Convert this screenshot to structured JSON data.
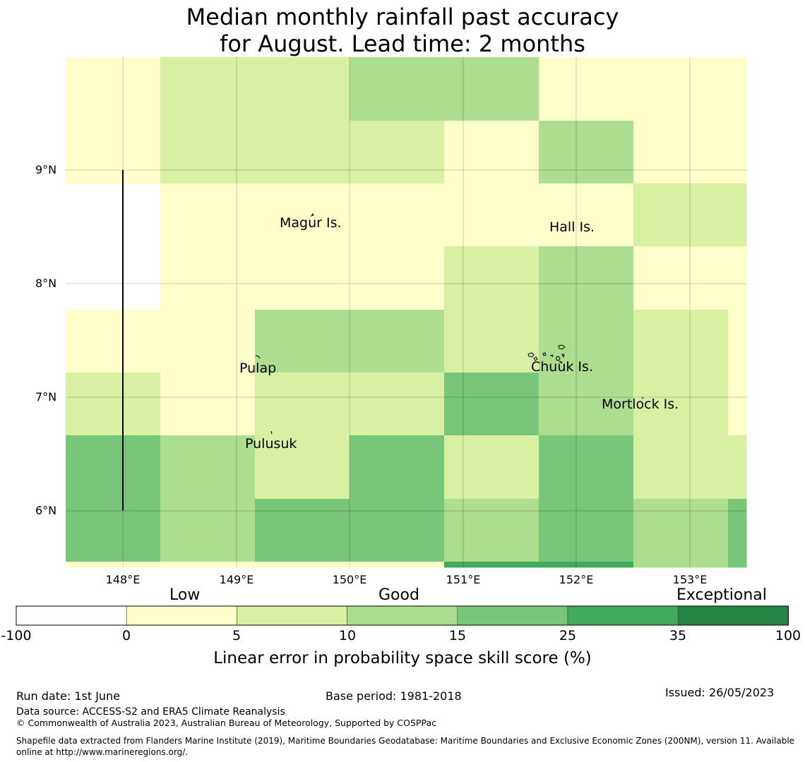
{
  "title": {
    "line1": "Median monthly rainfall past accuracy",
    "line2": "for August. Lead time: 2 months"
  },
  "map": {
    "lat_labels": [
      "9°N",
      "8°N",
      "7°N",
      "6°N"
    ],
    "lon_labels": [
      "148°E",
      "149°E",
      "150°E",
      "151°E",
      "152°E",
      "153°E"
    ],
    "places": {
      "magur": "Magur Is.",
      "hall": "Hall Is.",
      "pulap": "Pulap",
      "chuuk": "Chuuk Is.",
      "mortlock": "Mortlock Is.",
      "pulusuk": "Pulusuk"
    },
    "category_colors": [
      "#ffffff",
      "#ffffcc",
      "#d9f0a3",
      "#addd8e",
      "#78c679",
      "#41ab5d",
      "#238443"
    ]
  },
  "colorbar": {
    "categories": {
      "low": "Low",
      "good": "Good",
      "exceptional": "Exceptional"
    },
    "ticks": [
      "-100",
      "0",
      "5",
      "10",
      "15",
      "25",
      "35",
      "100"
    ],
    "colors": [
      "#ffffff",
      "#ffffcc",
      "#d9f0a3",
      "#addd8e",
      "#78c679",
      "#41ab5d",
      "#238443"
    ],
    "label": "Linear error in probability space skill score (%)"
  },
  "footer": {
    "run_date": "Run date: 1st June",
    "base_period": "Base period: 1981-2018",
    "issued": "Issued: 26/05/2023",
    "data_source": "Data source: ACCESS-S2 and ERA5 Climate Reanalysis",
    "copyright": "© Commonwealth of Australia 2023, Australian Bureau of Meteorology, Supported by COSPPac",
    "shapefile": "Shapefile data extracted from Flanders Marine Institute (2019), Maritime Boundaries Geodatabase: Maritime Boundaries and Exclusive Economic Zones (200NM), version 11. Available online at http://www.marineregions.org/."
  }
}
